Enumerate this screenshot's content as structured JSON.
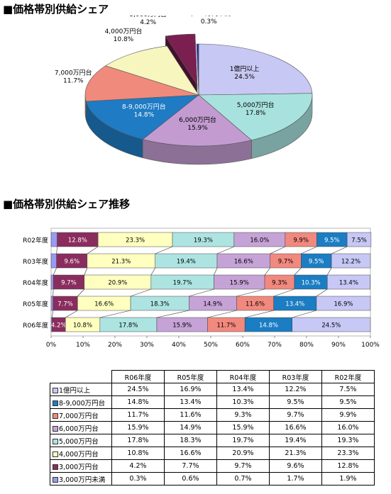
{
  "titles": {
    "pie": "■価格帯別供給シェア",
    "bars": "■価格帯別供給シェア推移"
  },
  "chart_data": [
    {
      "type": "pie",
      "title": "■価格帯別供給シェア",
      "categories": [
        "1億円以上",
        "5,000万円台",
        "6,000万円台",
        "8-9,000万円台",
        "7,000万円台",
        "4,000万円台",
        "3,000万円台",
        "3,000万円未満"
      ],
      "values": [
        24.5,
        17.8,
        15.9,
        14.8,
        11.7,
        10.8,
        4.2,
        0.3
      ],
      "value_labels": [
        "24.5%",
        "17.8%",
        "15.9%",
        "14.8%",
        "11.7%",
        "10.8%",
        "4.2%",
        "0.3%"
      ],
      "colors": [
        "#c8c8f4",
        "#a8e2de",
        "#c39bd1",
        "#1e7bc4",
        "#f08a7c",
        "#f6f6be",
        "#7a1f50",
        "#2f2fb0"
      ],
      "style": "3d",
      "exploded": [
        "3,000万円台"
      ]
    },
    {
      "type": "bar",
      "stacked": "percent",
      "orientation": "horizontal",
      "title": "■価格帯別供給シェア推移",
      "categories": [
        "R02年度",
        "R03年度",
        "R04年度",
        "R05年度",
        "R06年度"
      ],
      "series": [
        {
          "name": "3,000万円未満",
          "color": "#9a9af2",
          "values": [
            1.9,
            1.7,
            0.7,
            0.6,
            0.3
          ]
        },
        {
          "name": "3,000万円台",
          "color": "#8a2d5e",
          "values": [
            12.8,
            9.6,
            9.7,
            7.7,
            4.2
          ]
        },
        {
          "name": "4,000万円台",
          "color": "#ffffc0",
          "values": [
            23.3,
            21.3,
            20.9,
            16.6,
            10.8
          ]
        },
        {
          "name": "5,000万円台",
          "color": "#ade4e2",
          "values": [
            19.3,
            19.4,
            19.7,
            18.3,
            17.8
          ]
        },
        {
          "name": "6,000万円台",
          "color": "#c6a3d6",
          "values": [
            16.0,
            16.6,
            15.9,
            14.9,
            15.9
          ]
        },
        {
          "name": "7,000万円台",
          "color": "#f2897e",
          "values": [
            9.9,
            9.7,
            9.3,
            11.6,
            11.7
          ]
        },
        {
          "name": "8-9,000万円台",
          "color": "#1b7dc3",
          "values": [
            9.5,
            9.5,
            10.3,
            13.4,
            14.8
          ]
        },
        {
          "name": "1億円以上",
          "color": "#c8c8f6",
          "values": [
            7.5,
            12.2,
            13.4,
            16.9,
            24.5
          ]
        }
      ],
      "label_text": [
        [
          "",
          "12.8%",
          "23.3%",
          "19.3%",
          "16.0%",
          "9.9%",
          "9.5%",
          "7.5%"
        ],
        [
          "",
          "9.6%",
          "21.3%",
          "19.4%",
          "16.6%",
          "9.7%",
          "9.5%",
          "12.2%"
        ],
        [
          "",
          "9.7%",
          "20.9%",
          "19.7%",
          "15.9%",
          "9.3%",
          "10.3%",
          "13.4%"
        ],
        [
          "",
          "7.7%",
          "16.6%",
          "18.3%",
          "14.9%",
          "11.6%",
          "13.4%",
          "16.9%"
        ],
        [
          "",
          "4.2%",
          "10.8%",
          "17.8%",
          "15.9%",
          "11.7%",
          "14.8%",
          "24.5%"
        ]
      ],
      "xlim": [
        0,
        100
      ],
      "xticks": [
        "0%",
        "10%",
        "20%",
        "30%",
        "40%",
        "50%",
        "60%",
        "70%",
        "80%",
        "90%",
        "100%"
      ],
      "series_lines": true
    },
    {
      "type": "table",
      "columns": [
        "R06年度",
        "R05年度",
        "R04年度",
        "R03年度",
        "R02年度"
      ],
      "rows": [
        {
          "label": "1億円以上",
          "color": "#c8c8f6",
          "values": [
            "24.5%",
            "16.9%",
            "13.4%",
            "12.2%",
            "7.5%"
          ]
        },
        {
          "label": "8-9,000万円台",
          "color": "#1b7dc3",
          "values": [
            "14.8%",
            "13.4%",
            "10.3%",
            "9.5%",
            "9.5%"
          ]
        },
        {
          "label": "7,000万円台",
          "color": "#f2897e",
          "values": [
            "11.7%",
            "11.6%",
            "9.3%",
            "9.7%",
            "9.9%"
          ]
        },
        {
          "label": "6,000万円台",
          "color": "#c6a3d6",
          "values": [
            "15.9%",
            "14.9%",
            "15.9%",
            "16.6%",
            "16.0%"
          ]
        },
        {
          "label": "5,000万円台",
          "color": "#ade4e2",
          "values": [
            "17.8%",
            "18.3%",
            "19.7%",
            "19.4%",
            "19.3%"
          ]
        },
        {
          "label": "4,000万円台",
          "color": "#ffffc0",
          "values": [
            "10.8%",
            "16.6%",
            "20.9%",
            "21.3%",
            "23.3%"
          ]
        },
        {
          "label": "3,000万円台",
          "color": "#8a2d5e",
          "values": [
            "4.2%",
            "7.7%",
            "9.7%",
            "9.6%",
            "12.8%"
          ]
        },
        {
          "label": "3,000万円未満",
          "color": "#9a9af2",
          "values": [
            "0.3%",
            "0.6%",
            "0.7%",
            "1.7%",
            "1.9%"
          ]
        }
      ]
    }
  ]
}
